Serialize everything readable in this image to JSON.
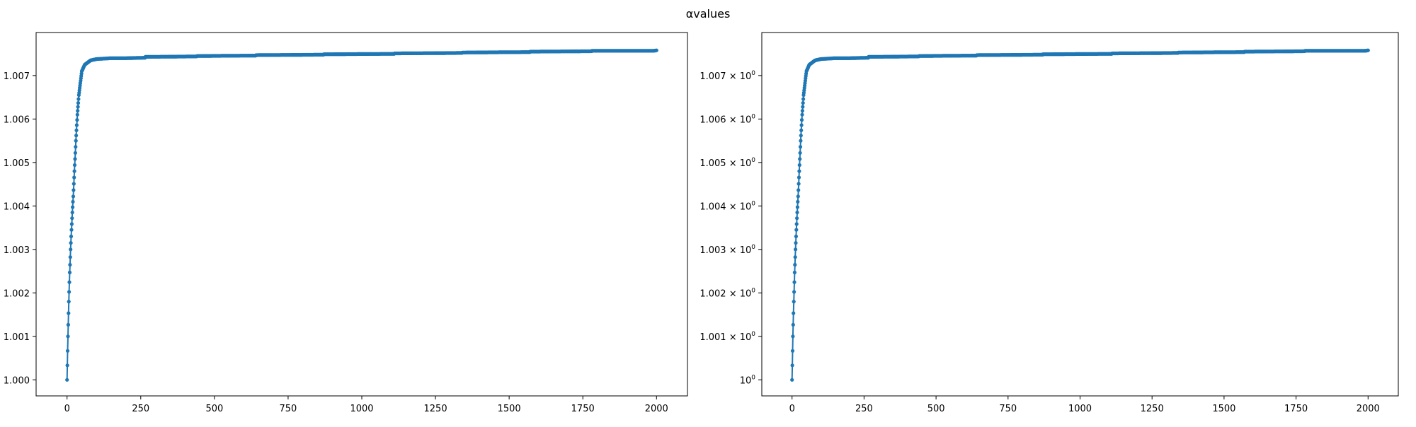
{
  "figure": {
    "suptitle": "αvalues"
  },
  "chart_data": [
    {
      "type": "line",
      "title": "",
      "xlabel": "",
      "ylabel": "",
      "xlim": [
        -105,
        2105
      ],
      "ylim": [
        0.99963,
        1.00799
      ],
      "x_ticks": [
        0,
        250,
        500,
        750,
        1000,
        1250,
        1500,
        1750,
        2000
      ],
      "x_tick_labels": [
        "0",
        "250",
        "500",
        "750",
        "1000",
        "1250",
        "1500",
        "1750",
        "2000"
      ],
      "y_ticks": [
        1.0,
        1.001,
        1.002,
        1.003,
        1.004,
        1.005,
        1.006,
        1.007
      ],
      "y_tick_labels": [
        "1.000",
        "1.001",
        "1.002",
        "1.003",
        "1.004",
        "1.005",
        "1.006",
        "1.007"
      ],
      "marker": "dot",
      "color": "#1f77b4",
      "series": [
        {
          "x": [
            0,
            3,
            6,
            9,
            12,
            15,
            18,
            21,
            25,
            30,
            35,
            40,
            50,
            60,
            80,
            100,
            150,
            200,
            265,
            266,
            440,
            441,
            640,
            641,
            870,
            871,
            1110,
            1111,
            1340,
            1341,
            1570,
            1571,
            1780,
            1781,
            1990,
            2000
          ],
          "y": [
            1.0,
            1.001,
            1.0018,
            1.00247,
            1.003,
            1.00345,
            1.00385,
            1.00422,
            1.0048,
            1.0055,
            1.0061,
            1.00655,
            1.0071,
            1.00725,
            1.00735,
            1.00738,
            1.0074,
            1.0074,
            1.00741,
            1.00743,
            1.00744,
            1.00745,
            1.00746,
            1.00747,
            1.00748,
            1.00749,
            1.0075,
            1.00751,
            1.00752,
            1.00753,
            1.00754,
            1.00755,
            1.00756,
            1.00757,
            1.00757,
            1.00758
          ]
        }
      ]
    },
    {
      "type": "line",
      "title": "",
      "xlabel": "",
      "ylabel": "",
      "xlim": [
        -105,
        2105
      ],
      "ylim": [
        0.99963,
        1.00799
      ],
      "y_scale": "log",
      "x_ticks": [
        0,
        250,
        500,
        750,
        1000,
        1250,
        1500,
        1750,
        2000
      ],
      "x_tick_labels": [
        "0",
        "250",
        "500",
        "750",
        "1000",
        "1250",
        "1500",
        "1750",
        "2000"
      ],
      "y_ticks": [
        1.0,
        1.001,
        1.002,
        1.003,
        1.004,
        1.005,
        1.006,
        1.007
      ],
      "y_tick_labels": [
        {
          "base": "10",
          "exp": "0"
        },
        {
          "base": "1.001 × 10",
          "exp": "0"
        },
        {
          "base": "1.002 × 10",
          "exp": "0"
        },
        {
          "base": "1.003 × 10",
          "exp": "0"
        },
        {
          "base": "1.004 × 10",
          "exp": "0"
        },
        {
          "base": "1.005 × 10",
          "exp": "0"
        },
        {
          "base": "1.006 × 10",
          "exp": "0"
        },
        {
          "base": "1.007 × 10",
          "exp": "0"
        }
      ],
      "marker": "dot",
      "color": "#1f77b4",
      "series": [
        {
          "x": [
            0,
            3,
            6,
            9,
            12,
            15,
            18,
            21,
            25,
            30,
            35,
            40,
            50,
            60,
            80,
            100,
            150,
            200,
            265,
            266,
            440,
            441,
            640,
            641,
            870,
            871,
            1110,
            1111,
            1340,
            1341,
            1570,
            1571,
            1780,
            1781,
            1990,
            2000
          ],
          "y": [
            1.0,
            1.001,
            1.0018,
            1.00247,
            1.003,
            1.00345,
            1.00385,
            1.00422,
            1.0048,
            1.0055,
            1.0061,
            1.00655,
            1.0071,
            1.00725,
            1.00735,
            1.00738,
            1.0074,
            1.0074,
            1.00741,
            1.00743,
            1.00744,
            1.00745,
            1.00746,
            1.00747,
            1.00748,
            1.00749,
            1.0075,
            1.00751,
            1.00752,
            1.00753,
            1.00754,
            1.00755,
            1.00756,
            1.00757,
            1.00757,
            1.00758
          ]
        }
      ]
    }
  ]
}
